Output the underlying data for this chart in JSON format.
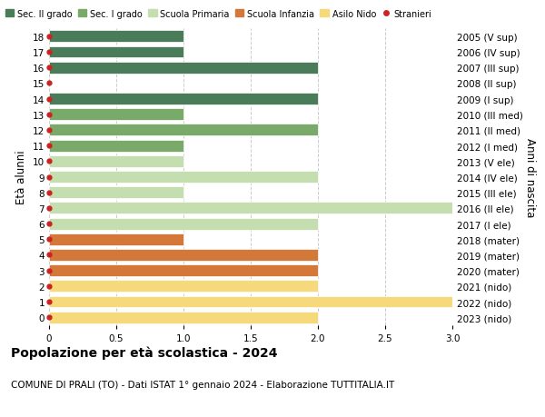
{
  "ages": [
    18,
    17,
    16,
    15,
    14,
    13,
    12,
    11,
    10,
    9,
    8,
    7,
    6,
    5,
    4,
    3,
    2,
    1,
    0
  ],
  "years": [
    "2005 (V sup)",
    "2006 (IV sup)",
    "2007 (III sup)",
    "2008 (II sup)",
    "2009 (I sup)",
    "2010 (III med)",
    "2011 (II med)",
    "2012 (I med)",
    "2013 (V ele)",
    "2014 (IV ele)",
    "2015 (III ele)",
    "2016 (II ele)",
    "2017 (I ele)",
    "2018 (mater)",
    "2019 (mater)",
    "2020 (mater)",
    "2021 (nido)",
    "2022 (nido)",
    "2023 (nido)"
  ],
  "values": [
    1,
    1,
    2,
    0,
    2,
    1,
    2,
    1,
    1,
    2,
    1,
    3,
    2,
    1,
    2,
    2,
    2,
    3,
    2
  ],
  "bar_colors": [
    "#4a7c59",
    "#4a7c59",
    "#4a7c59",
    "#4a7c59",
    "#4a7c59",
    "#7aaa6a",
    "#7aaa6a",
    "#7aaa6a",
    "#c5deb0",
    "#c5deb0",
    "#c5deb0",
    "#c5deb0",
    "#c5deb0",
    "#d4783a",
    "#d4783a",
    "#d4783a",
    "#f5d97a",
    "#f5d97a",
    "#f5d97a"
  ],
  "stranieri_color": "#cc2222",
  "legend_labels": [
    "Sec. II grado",
    "Sec. I grado",
    "Scuola Primaria",
    "Scuola Infanzia",
    "Asilo Nido",
    "Stranieri"
  ],
  "legend_colors": [
    "#4a7c59",
    "#7aaa6a",
    "#c5deb0",
    "#d4783a",
    "#f5d97a",
    "#cc2222"
  ],
  "title": "Popolazione per età scolastica - 2024",
  "subtitle": "COMUNE DI PRALI (TO) - Dati ISTAT 1° gennaio 2024 - Elaborazione TUTTITALIA.IT",
  "ylabel_left": "Età alunni",
  "ylabel_right": "Anni di nascita",
  "xlim": [
    0,
    3.0
  ],
  "xticks": [
    0,
    0.5,
    1.0,
    1.5,
    2.0,
    2.5,
    3.0
  ],
  "background_color": "#ffffff",
  "bar_height": 0.75,
  "grid_color": "#cccccc",
  "fig_width": 6.0,
  "fig_height": 4.6
}
